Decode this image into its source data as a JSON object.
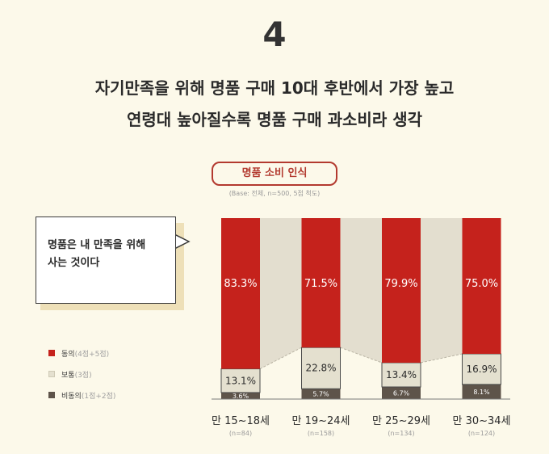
{
  "page_number": "4",
  "headline": {
    "line1": "자기만족을 위해 명품 구매 10대 후반에서 가장 높고",
    "line2": "연령대 높아질수록 명품 구매 과소비라 생각"
  },
  "colors": {
    "agree": "#c5221c",
    "neutral": "#e4e0cf",
    "disagree": "#5e544a",
    "connector": "#e3decf",
    "accent": "#b33a2f"
  },
  "chart_data": {
    "type": "bar",
    "stacked": true,
    "title": "명품 소비 인식",
    "subtitle": "(Base: 전체, n=500, 5점 척도)",
    "statement": [
      "명품은 내 만족을 위해",
      "사는 것이다"
    ],
    "categories": [
      "만 15~18세",
      "만 19~24세",
      "만 25~29세",
      "만 30~34세"
    ],
    "category_n": [
      "(n=84)",
      "(n=158)",
      "(n=134)",
      "(n=124)"
    ],
    "ylim": [
      0,
      100
    ],
    "legend_position": "left",
    "series": [
      {
        "name": "비동의",
        "note": "(1점+2점)",
        "values": [
          3.6,
          5.7,
          6.7,
          8.1
        ],
        "labels": [
          "3.6%",
          "5.7%",
          "6.7%",
          "8.1%"
        ]
      },
      {
        "name": "보통",
        "note": "(3점)",
        "values": [
          13.1,
          22.8,
          13.4,
          16.9
        ],
        "labels": [
          "13.1%",
          "22.8%",
          "13.4%",
          "16.9%"
        ]
      },
      {
        "name": "동의",
        "note": "(4점+5점)",
        "values": [
          83.3,
          71.5,
          79.9,
          75.0
        ],
        "labels": [
          "83.3%",
          "71.5%",
          "79.9%",
          "75.0%"
        ]
      }
    ]
  }
}
